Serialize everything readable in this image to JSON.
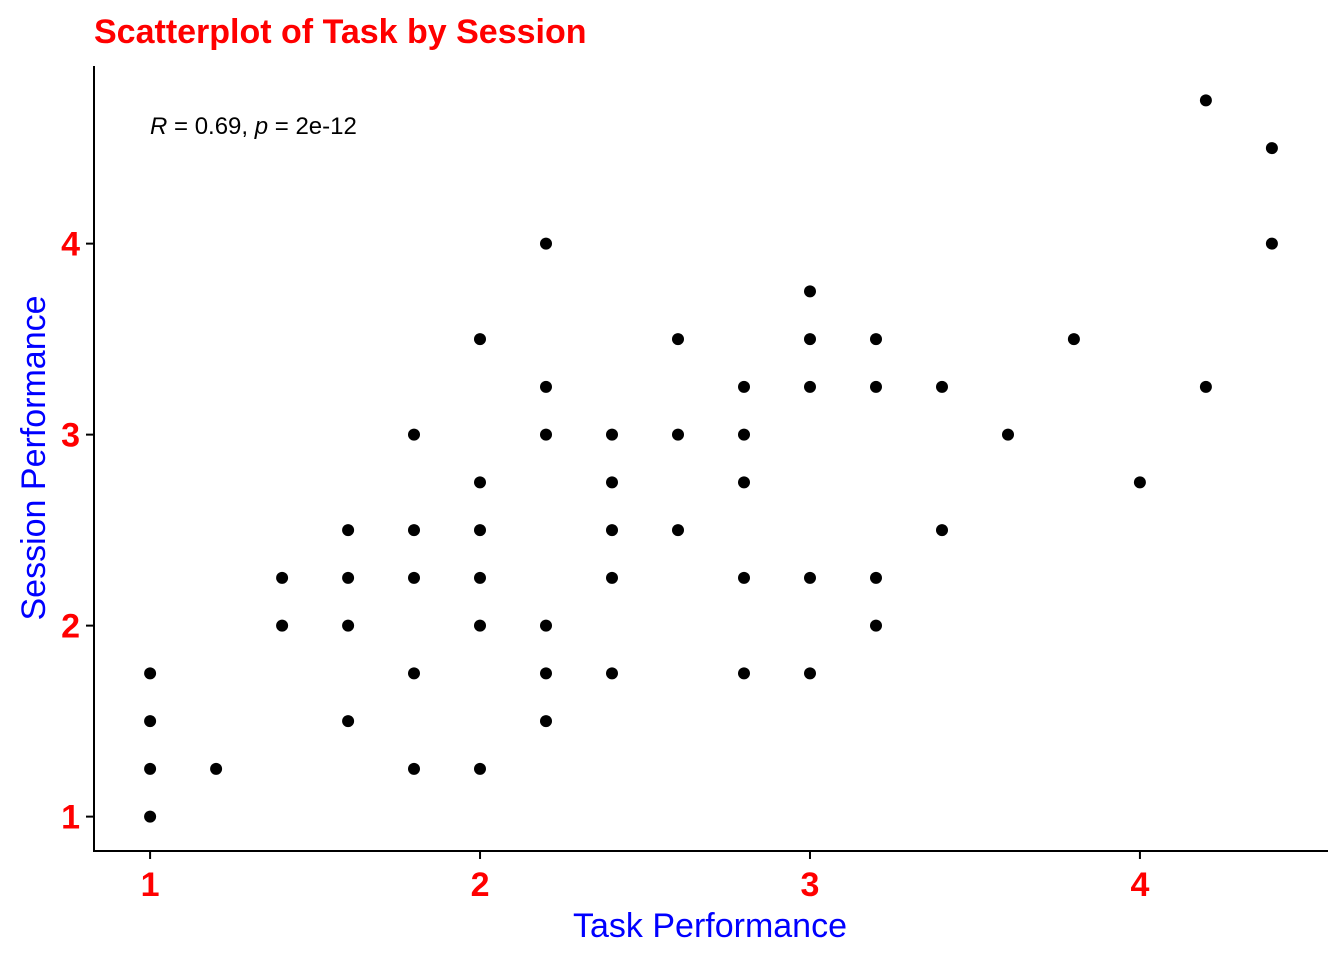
{
  "chart_data": {
    "type": "scatter",
    "title": "Scatterplot of Task by Session",
    "xlabel": "Task Performance",
    "ylabel": "Session Performance",
    "xlim": [
      0.83,
      4.57
    ],
    "ylim": [
      0.82,
      4.93
    ],
    "x_ticks": [
      1,
      2,
      3,
      4
    ],
    "y_ticks": [
      1,
      2,
      3,
      4
    ],
    "grid": false,
    "annotation": {
      "r_symbol": "R",
      "r_text": " = 0.69, ",
      "p_symbol": "p",
      "p_text": " = 2e-12"
    },
    "colors": {
      "title": "#ff0000",
      "tick_labels": "#ff0000",
      "axis_labels": "#0000ff",
      "points": "#000000"
    },
    "points": [
      {
        "x": 1.0,
        "y": 1.0
      },
      {
        "x": 1.0,
        "y": 1.25
      },
      {
        "x": 1.0,
        "y": 1.5
      },
      {
        "x": 1.0,
        "y": 1.75
      },
      {
        "x": 1.2,
        "y": 1.25
      },
      {
        "x": 1.4,
        "y": 2.0
      },
      {
        "x": 1.4,
        "y": 2.25
      },
      {
        "x": 1.6,
        "y": 1.5
      },
      {
        "x": 1.6,
        "y": 2.0
      },
      {
        "x": 1.6,
        "y": 2.25
      },
      {
        "x": 1.6,
        "y": 2.5
      },
      {
        "x": 1.8,
        "y": 1.25
      },
      {
        "x": 1.8,
        "y": 1.75
      },
      {
        "x": 1.8,
        "y": 2.25
      },
      {
        "x": 1.8,
        "y": 2.5
      },
      {
        "x": 1.8,
        "y": 3.0
      },
      {
        "x": 2.0,
        "y": 1.25
      },
      {
        "x": 2.0,
        "y": 2.0
      },
      {
        "x": 2.0,
        "y": 2.25
      },
      {
        "x": 2.0,
        "y": 2.5
      },
      {
        "x": 2.0,
        "y": 2.75
      },
      {
        "x": 2.0,
        "y": 3.5
      },
      {
        "x": 2.2,
        "y": 1.5
      },
      {
        "x": 2.2,
        "y": 1.75
      },
      {
        "x": 2.2,
        "y": 2.0
      },
      {
        "x": 2.2,
        "y": 3.0
      },
      {
        "x": 2.2,
        "y": 3.25
      },
      {
        "x": 2.2,
        "y": 4.0
      },
      {
        "x": 2.4,
        "y": 1.75
      },
      {
        "x": 2.4,
        "y": 2.25
      },
      {
        "x": 2.4,
        "y": 2.5
      },
      {
        "x": 2.4,
        "y": 2.75
      },
      {
        "x": 2.4,
        "y": 3.0
      },
      {
        "x": 2.6,
        "y": 2.5
      },
      {
        "x": 2.6,
        "y": 3.0
      },
      {
        "x": 2.6,
        "y": 3.5
      },
      {
        "x": 2.8,
        "y": 1.75
      },
      {
        "x": 2.8,
        "y": 2.25
      },
      {
        "x": 2.8,
        "y": 2.75
      },
      {
        "x": 2.8,
        "y": 3.0
      },
      {
        "x": 2.8,
        "y": 3.25
      },
      {
        "x": 3.0,
        "y": 1.75
      },
      {
        "x": 3.0,
        "y": 2.25
      },
      {
        "x": 3.0,
        "y": 3.25
      },
      {
        "x": 3.0,
        "y": 3.5
      },
      {
        "x": 3.0,
        "y": 3.75
      },
      {
        "x": 3.2,
        "y": 2.0
      },
      {
        "x": 3.2,
        "y": 2.25
      },
      {
        "x": 3.2,
        "y": 3.25
      },
      {
        "x": 3.2,
        "y": 3.5
      },
      {
        "x": 3.4,
        "y": 2.5
      },
      {
        "x": 3.4,
        "y": 3.25
      },
      {
        "x": 3.6,
        "y": 3.0
      },
      {
        "x": 3.8,
        "y": 3.5
      },
      {
        "x": 4.0,
        "y": 2.75
      },
      {
        "x": 4.2,
        "y": 3.25
      },
      {
        "x": 4.2,
        "y": 4.75
      },
      {
        "x": 4.4,
        "y": 4.0
      },
      {
        "x": 4.4,
        "y": 4.5
      }
    ]
  }
}
